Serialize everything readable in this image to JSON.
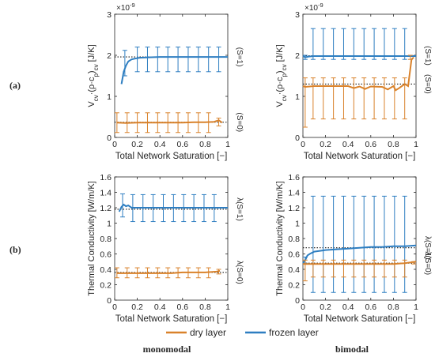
{
  "figure": {
    "row_labels": [
      "(a)",
      "(b)"
    ],
    "column_labels": [
      "monomodal",
      "bimodal"
    ],
    "legend": [
      {
        "label": "dry layer",
        "color": "#D9822B"
      },
      {
        "label": "frozen layer",
        "color": "#2E7EC1"
      }
    ]
  },
  "chart_data": [
    {
      "type": "line",
      "position": "top-left",
      "ylabel_parts": [
        "V",
        "cv",
        "·(ρ·c",
        "p",
        ")",
        "cv",
        " [J/K]"
      ],
      "xlabel": "Total Network Saturation [−]",
      "exponent_label": "×10",
      "exponent_power": "-9",
      "xlim": [
        0,
        1
      ],
      "ylim": [
        0,
        3
      ],
      "xticks": [
        "0",
        "0.2",
        "0.4",
        "0.6",
        "0.8",
        "1"
      ],
      "yticks": [
        "0",
        "1",
        "2",
        "3"
      ],
      "ref_labels": [
        "(S=1)",
        "(S=0)"
      ],
      "ref_values": [
        1.96,
        0.37
      ],
      "series": [
        {
          "name": "frozen layer",
          "color": "#2E7EC1",
          "x": [
            0.06,
            0.08,
            0.1,
            0.12,
            0.15,
            0.18,
            0.22,
            0.3,
            0.4,
            0.5,
            0.6,
            0.7,
            0.8,
            0.9,
            1.0
          ],
          "y": [
            1.3,
            1.6,
            1.75,
            1.85,
            1.9,
            1.92,
            1.94,
            1.95,
            1.96,
            1.96,
            1.96,
            1.96,
            1.96,
            1.96,
            1.96
          ],
          "err_x": [
            0.09,
            0.2,
            0.29,
            0.38,
            0.47,
            0.56,
            0.65,
            0.74,
            0.83,
            0.92
          ],
          "err_low": [
            1.5,
            1.6,
            1.6,
            1.6,
            1.6,
            1.6,
            1.6,
            1.6,
            1.6,
            1.6
          ],
          "err_high": [
            2.12,
            2.2,
            2.2,
            2.2,
            2.2,
            2.2,
            2.2,
            2.2,
            2.2,
            2.2
          ]
        },
        {
          "name": "dry layer",
          "color": "#D9822B",
          "x": [
            0.02,
            0.1,
            0.2,
            0.3,
            0.4,
            0.5,
            0.6,
            0.7,
            0.8,
            0.88,
            0.92,
            0.95
          ],
          "y": [
            0.36,
            0.35,
            0.36,
            0.36,
            0.36,
            0.36,
            0.36,
            0.37,
            0.37,
            0.38,
            0.42,
            0.36
          ],
          "err_x": [
            0.02,
            0.11,
            0.2,
            0.29,
            0.38,
            0.47,
            0.56,
            0.65,
            0.74,
            0.83,
            0.92
          ],
          "err_low": [
            0.12,
            0.12,
            0.12,
            0.12,
            0.12,
            0.12,
            0.12,
            0.12,
            0.12,
            0.12,
            0.28
          ],
          "err_high": [
            0.6,
            0.6,
            0.6,
            0.6,
            0.6,
            0.6,
            0.6,
            0.6,
            0.6,
            0.6,
            0.47
          ]
        }
      ]
    },
    {
      "type": "line",
      "position": "top-right",
      "ylabel_parts": [
        "V",
        "cv",
        "·(ρ·c",
        "p",
        ")",
        "cv",
        " [J/K]"
      ],
      "xlabel": "Total Network Saturation [−]",
      "exponent_label": "×10",
      "exponent_power": "-9",
      "xlim": [
        0,
        1
      ],
      "ylim": [
        0,
        3
      ],
      "xticks": [
        "0",
        "0.2",
        "0.4",
        "0.6",
        "0.8",
        "1"
      ],
      "yticks": [
        "0",
        "1",
        "2",
        "3"
      ],
      "ref_labels": [
        "(S=1)",
        "(S=0)"
      ],
      "ref_values": [
        1.99,
        1.3
      ],
      "series": [
        {
          "name": "frozen layer",
          "color": "#2E7EC1",
          "x": [
            0.0,
            0.02,
            0.05,
            0.1,
            0.2,
            0.3,
            0.4,
            0.5,
            0.6,
            0.7,
            0.8,
            0.9,
            0.95,
            1.0
          ],
          "y": [
            1.98,
            1.95,
            1.97,
            1.98,
            1.98,
            1.98,
            1.98,
            1.98,
            1.98,
            1.98,
            1.98,
            1.98,
            1.98,
            1.98
          ],
          "err_x": [
            0.02,
            0.09,
            0.18,
            0.27,
            0.36,
            0.45,
            0.54,
            0.63,
            0.72,
            0.81,
            0.9
          ],
          "err_low": [
            1.9,
            1.9,
            1.9,
            1.9,
            1.9,
            1.9,
            1.9,
            1.9,
            1.9,
            1.9,
            1.9
          ],
          "err_high": [
            2.0,
            2.65,
            2.65,
            2.65,
            2.65,
            2.65,
            2.65,
            2.65,
            2.65,
            2.65,
            2.65
          ]
        },
        {
          "name": "dry layer",
          "color": "#D9822B",
          "x": [
            0.0,
            0.02,
            0.1,
            0.2,
            0.3,
            0.4,
            0.45,
            0.5,
            0.55,
            0.6,
            0.7,
            0.75,
            0.8,
            0.82,
            0.85,
            0.9,
            0.93,
            0.96,
            0.98
          ],
          "y": [
            1.25,
            1.23,
            1.25,
            1.25,
            1.25,
            1.25,
            1.2,
            1.24,
            1.18,
            1.24,
            1.23,
            1.17,
            1.25,
            1.15,
            1.2,
            1.3,
            1.25,
            1.9,
            1.95
          ],
          "err_x": [
            0.02,
            0.09,
            0.18,
            0.27,
            0.36,
            0.45,
            0.54,
            0.63,
            0.72,
            0.81,
            0.9,
            0.95
          ],
          "err_low": [
            0.25,
            0.45,
            0.45,
            0.45,
            0.45,
            0.45,
            0.45,
            0.45,
            0.45,
            0.45,
            0.45,
            1.9
          ],
          "err_high": [
            1.45,
            1.45,
            1.45,
            1.45,
            1.45,
            1.45,
            1.45,
            1.45,
            1.45,
            1.45,
            1.45,
            2.0
          ]
        }
      ]
    },
    {
      "type": "line",
      "position": "bottom-left",
      "ylabel_parts": [
        "Thermal Conductivity [W/m/K]"
      ],
      "xlabel": "Total Network Saturation [−]",
      "xlim": [
        0,
        1
      ],
      "ylim": [
        0,
        1.6
      ],
      "xticks": [
        "0",
        "0.2",
        "0.4",
        "0.6",
        "0.8",
        "1"
      ],
      "yticks": [
        "0",
        "0.2",
        "0.4",
        "0.6",
        "0.8",
        "1",
        "1.2",
        "1.4",
        "1.6"
      ],
      "ref_labels": [
        "λ(S=1)",
        "λ(S=0)"
      ],
      "ref_values": [
        1.18,
        0.36
      ],
      "series": [
        {
          "name": "frozen layer",
          "color": "#2E7EC1",
          "x": [
            0.04,
            0.06,
            0.08,
            0.1,
            0.12,
            0.15,
            0.2,
            0.3,
            0.4,
            0.5,
            0.6,
            0.7,
            0.8,
            0.9,
            1.0
          ],
          "y": [
            1.15,
            1.21,
            1.24,
            1.22,
            1.23,
            1.2,
            1.2,
            1.2,
            1.2,
            1.2,
            1.2,
            1.2,
            1.2,
            1.2,
            1.2
          ],
          "err_x": [
            0.07,
            0.16,
            0.25,
            0.34,
            0.43,
            0.52,
            0.61,
            0.7,
            0.79,
            0.88
          ],
          "err_low": [
            1.08,
            1.02,
            1.02,
            1.02,
            1.02,
            1.02,
            1.02,
            1.02,
            1.02,
            1.02
          ],
          "err_high": [
            1.38,
            1.37,
            1.37,
            1.37,
            1.37,
            1.37,
            1.37,
            1.37,
            1.37,
            1.37
          ]
        },
        {
          "name": "dry layer",
          "color": "#D9822B",
          "x": [
            0.02,
            0.1,
            0.2,
            0.3,
            0.4,
            0.5,
            0.6,
            0.7,
            0.8,
            0.9,
            0.93
          ],
          "y": [
            0.35,
            0.35,
            0.35,
            0.35,
            0.35,
            0.35,
            0.36,
            0.36,
            0.36,
            0.37,
            0.38
          ],
          "err_x": [
            0.02,
            0.11,
            0.2,
            0.29,
            0.38,
            0.47,
            0.56,
            0.65,
            0.74,
            0.83,
            0.92
          ],
          "err_low": [
            0.29,
            0.29,
            0.29,
            0.29,
            0.29,
            0.29,
            0.29,
            0.29,
            0.29,
            0.29,
            0.34
          ],
          "err_high": [
            0.42,
            0.42,
            0.42,
            0.42,
            0.42,
            0.42,
            0.42,
            0.42,
            0.42,
            0.42,
            0.4
          ]
        }
      ]
    },
    {
      "type": "line",
      "position": "bottom-right",
      "ylabel_parts": [
        "Thermal Conductivity [W/m/K]"
      ],
      "xlabel": "Total Network Saturation [−]",
      "xlim": [
        0,
        1
      ],
      "ylim": [
        0,
        1.6
      ],
      "xticks": [
        "0",
        "0.2",
        "0.4",
        "0.6",
        "0.8",
        "1"
      ],
      "yticks": [
        "0",
        "0.2",
        "0.4",
        "0.6",
        "0.8",
        "1",
        "1.2",
        "1.4",
        "1.6"
      ],
      "ref_labels": [
        "λ(S=1)",
        "λ(S=0)"
      ],
      "ref_values": [
        0.68,
        0.48
      ],
      "series": [
        {
          "name": "frozen layer",
          "color": "#2E7EC1",
          "x": [
            0.0,
            0.02,
            0.04,
            0.06,
            0.1,
            0.2,
            0.3,
            0.4,
            0.5,
            0.6,
            0.7,
            0.8,
            0.9,
            1.0
          ],
          "y": [
            0.48,
            0.52,
            0.58,
            0.6,
            0.63,
            0.65,
            0.66,
            0.67,
            0.68,
            0.69,
            0.69,
            0.7,
            0.7,
            0.71
          ],
          "err_x": [
            0.02,
            0.09,
            0.18,
            0.27,
            0.36,
            0.45,
            0.54,
            0.63,
            0.72,
            0.81,
            0.9
          ],
          "err_low": [
            0.48,
            0.1,
            0.1,
            0.1,
            0.1,
            0.1,
            0.1,
            0.1,
            0.1,
            0.1,
            0.1
          ],
          "err_high": [
            0.56,
            1.35,
            1.35,
            1.35,
            1.35,
            1.35,
            1.35,
            1.35,
            1.35,
            1.35,
            1.35
          ]
        },
        {
          "name": "dry layer",
          "color": "#D9822B",
          "x": [
            0.0,
            0.1,
            0.2,
            0.3,
            0.4,
            0.5,
            0.6,
            0.7,
            0.8,
            0.9,
            0.95,
            1.0
          ],
          "y": [
            0.47,
            0.47,
            0.47,
            0.47,
            0.47,
            0.47,
            0.47,
            0.47,
            0.47,
            0.48,
            0.49,
            0.5
          ],
          "err_x": [
            0.02,
            0.09,
            0.18,
            0.27,
            0.36,
            0.45,
            0.54,
            0.63,
            0.72,
            0.81,
            0.9,
            0.98
          ],
          "err_low": [
            0.25,
            0.3,
            0.3,
            0.3,
            0.3,
            0.3,
            0.3,
            0.3,
            0.3,
            0.3,
            0.3,
            0.47
          ],
          "err_high": [
            0.52,
            0.52,
            0.52,
            0.52,
            0.52,
            0.52,
            0.52,
            0.52,
            0.52,
            0.52,
            0.52,
            0.5
          ]
        }
      ]
    }
  ]
}
